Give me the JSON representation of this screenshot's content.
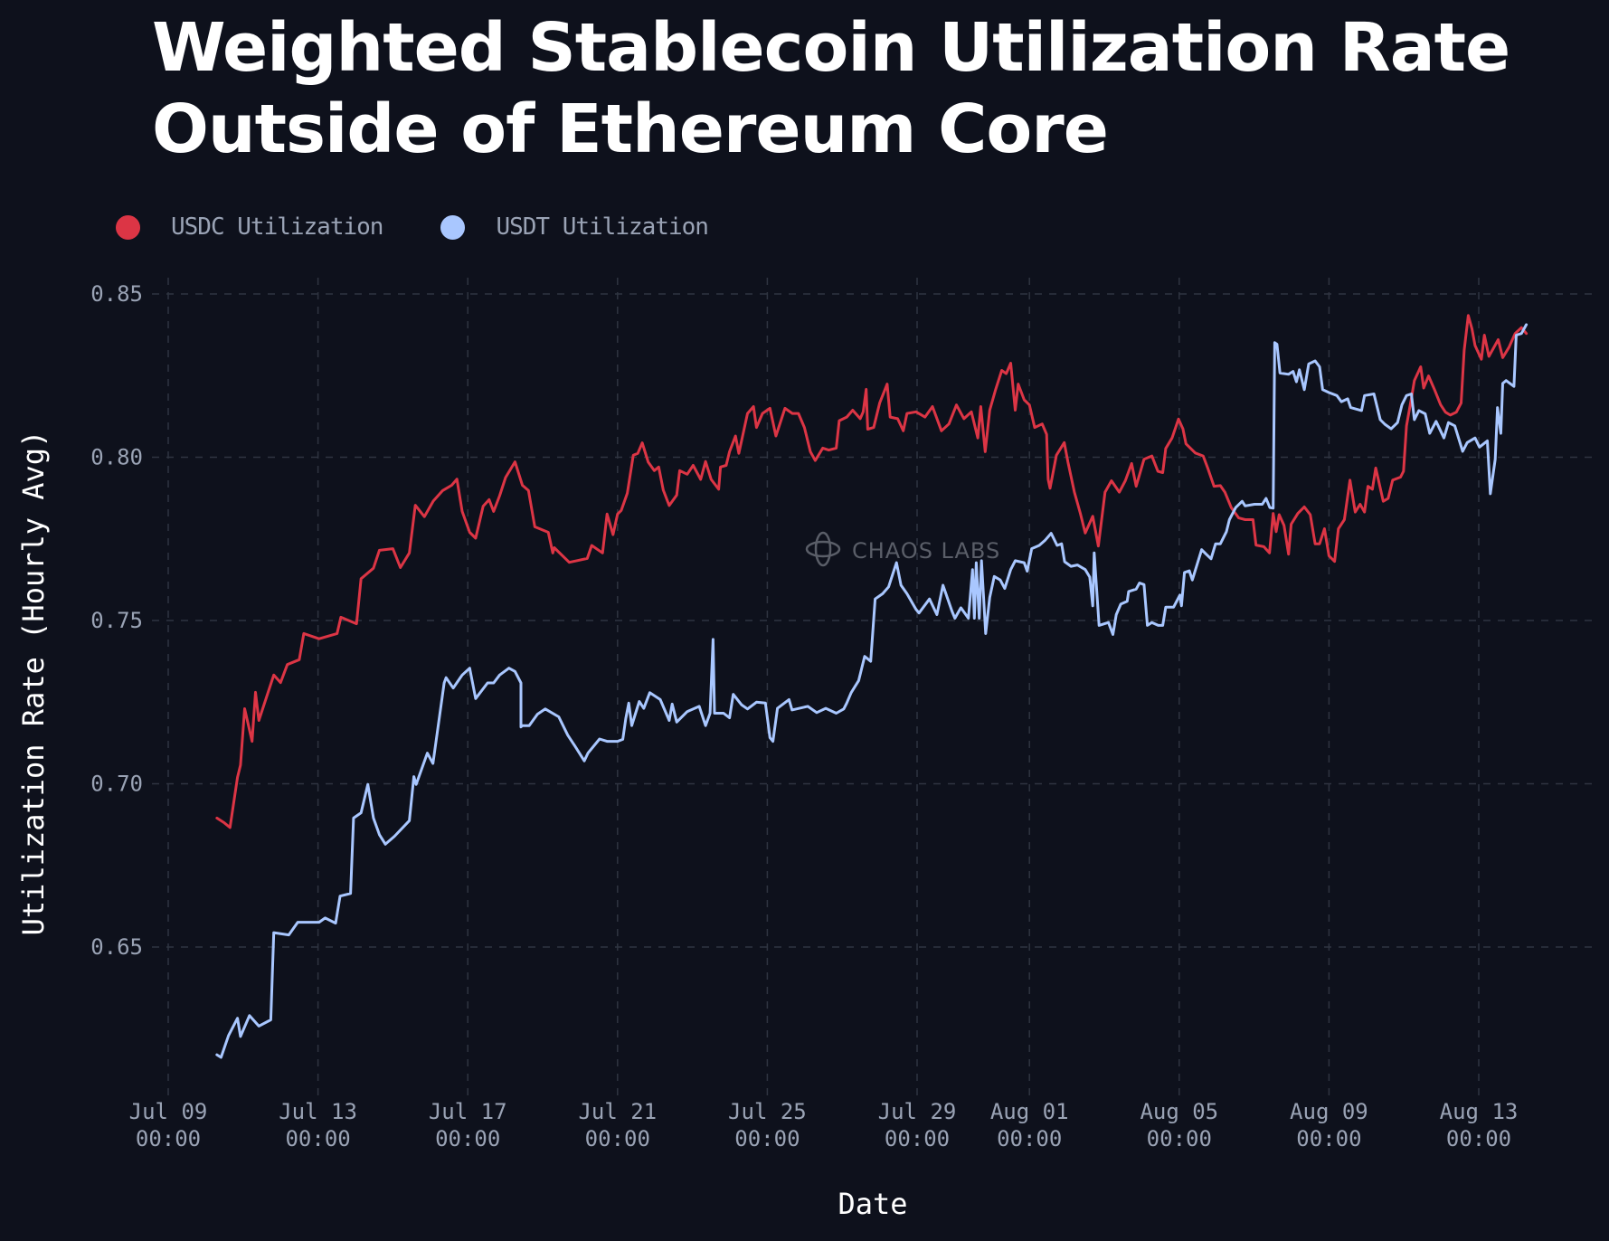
{
  "chart_data": {
    "type": "line",
    "title": "Weighted Stablecoin Utilization Rate Outside of Ethereum Core",
    "title_lines": [
      "Weighted Stablecoin Utilization Rate",
      "Outside of Ethereum Core"
    ],
    "xlabel": "Date",
    "ylabel": "Utilization Rate (Hourly Avg)",
    "x_unit": "days since Jul 09 00:00",
    "xlim": [
      -0.5,
      38.5
    ],
    "ylim": [
      0.6055,
      0.855
    ],
    "grid": true,
    "legend_position": "top-left",
    "watermark": "CHAOS LABS",
    "y_ticks": [
      {
        "value": 0.85,
        "label": "0.85"
      },
      {
        "value": 0.8,
        "label": "0.80"
      },
      {
        "value": 0.75,
        "label": "0.75"
      },
      {
        "value": 0.7,
        "label": "0.70"
      },
      {
        "value": 0.65,
        "label": "0.65"
      }
    ],
    "x_ticks": [
      {
        "day": 0,
        "label": "Jul 09",
        "sub": "00:00"
      },
      {
        "day": 4,
        "label": "Jul 13",
        "sub": "00:00"
      },
      {
        "day": 8,
        "label": "Jul 17",
        "sub": "00:00"
      },
      {
        "day": 12,
        "label": "Jul 21",
        "sub": "00:00"
      },
      {
        "day": 16,
        "label": "Jul 25",
        "sub": "00:00"
      },
      {
        "day": 20,
        "label": "Jul 29",
        "sub": "00:00"
      },
      {
        "day": 23,
        "label": "Aug 01",
        "sub": "00:00"
      },
      {
        "day": 27,
        "label": "Aug 05",
        "sub": "00:00"
      },
      {
        "day": 31,
        "label": "Aug 09",
        "sub": "00:00"
      },
      {
        "day": 35,
        "label": "Aug 13",
        "sub": "00:00"
      }
    ],
    "series": [
      {
        "name": "USDC Utilization",
        "color": "#dc3545",
        "x": [
          1.3,
          1.5,
          1.65,
          1.85,
          1.93,
          2.04,
          2.24,
          2.33,
          2.42,
          2.82,
          3.0,
          3.18,
          3.5,
          3.62,
          4.03,
          4.51,
          4.61,
          5.03,
          5.15,
          5.48,
          5.64,
          6.0,
          6.2,
          6.44,
          6.6,
          6.84,
          7.08,
          7.33,
          7.57,
          7.71,
          7.85,
          8.05,
          8.21,
          8.41,
          8.57,
          8.69,
          8.85,
          9.01,
          9.26,
          9.46,
          9.62,
          9.79,
          10.15,
          10.27,
          10.31,
          10.71,
          11.19,
          11.31,
          11.6,
          11.72,
          11.88,
          12.0,
          12.1,
          12.26,
          12.42,
          12.54,
          12.66,
          12.82,
          12.98,
          13.1,
          13.22,
          13.38,
          13.58,
          13.66,
          13.86,
          14.02,
          14.22,
          14.35,
          14.5,
          14.7,
          14.75,
          14.9,
          14.99,
          15.15,
          15.24,
          15.47,
          15.63,
          15.71,
          15.87,
          16.07,
          16.23,
          16.47,
          16.67,
          16.83,
          16.99,
          17.15,
          17.28,
          17.48,
          17.64,
          17.84,
          17.92,
          18.12,
          18.28,
          18.48,
          18.56,
          18.64,
          18.68,
          18.84,
          19.0,
          19.2,
          19.28,
          19.48,
          19.63,
          19.73,
          19.97,
          20.21,
          20.41,
          20.65,
          20.85,
          21.05,
          21.25,
          21.45,
          21.62,
          21.7,
          21.82,
          21.94,
          22.1,
          22.26,
          22.38,
          22.5,
          22.62,
          22.7,
          22.86,
          23.0,
          23.14,
          23.34,
          23.46,
          23.5,
          23.55,
          23.72,
          23.93,
          24.03,
          24.2,
          24.36,
          24.49,
          24.69,
          24.84,
          25.02,
          25.19,
          25.4,
          25.56,
          25.73,
          25.85,
          26.06,
          26.27,
          26.43,
          26.56,
          26.64,
          26.81,
          26.98,
          27.1,
          27.18,
          27.43,
          27.64,
          27.76,
          27.93,
          28.1,
          28.22,
          28.39,
          28.59,
          28.76,
          28.97,
          29.05,
          29.26,
          29.41,
          29.51,
          29.59,
          29.67,
          29.8,
          29.92,
          29.99,
          30.17,
          30.34,
          30.5,
          30.63,
          30.75,
          30.88,
          31.0,
          31.15,
          31.25,
          31.41,
          31.56,
          31.7,
          31.83,
          31.95,
          32.04,
          32.16,
          32.25,
          32.45,
          32.58,
          32.7,
          32.91,
          32.99,
          33.07,
          33.2,
          33.28,
          33.45,
          33.53,
          33.66,
          33.82,
          33.98,
          34.11,
          34.24,
          34.4,
          34.53,
          34.61,
          34.72,
          34.82,
          34.9,
          35.07,
          35.15,
          35.27,
          35.52,
          35.64,
          35.81,
          35.97,
          36.14,
          36.27
        ],
        "values": [
          0.6895,
          0.688,
          0.6866,
          0.702,
          0.7057,
          0.723,
          0.713,
          0.728,
          0.7194,
          0.7333,
          0.731,
          0.7365,
          0.738,
          0.746,
          0.7444,
          0.746,
          0.751,
          0.749,
          0.7628,
          0.766,
          0.7715,
          0.772,
          0.7662,
          0.7707,
          0.7853,
          0.7818,
          0.7866,
          0.7898,
          0.7914,
          0.7933,
          0.7834,
          0.777,
          0.7752,
          0.785,
          0.787,
          0.7834,
          0.7882,
          0.7938,
          0.7986,
          0.7914,
          0.7898,
          0.7787,
          0.777,
          0.7707,
          0.7723,
          0.7678,
          0.769,
          0.773,
          0.7707,
          0.7826,
          0.7763,
          0.7826,
          0.7837,
          0.789,
          0.8006,
          0.8012,
          0.8044,
          0.7985,
          0.7959,
          0.797,
          0.79,
          0.7852,
          0.7884,
          0.7959,
          0.7948,
          0.7975,
          0.7932,
          0.7987,
          0.7932,
          0.7902,
          0.797,
          0.7975,
          0.8017,
          0.8065,
          0.8012,
          0.8134,
          0.8155,
          0.8091,
          0.8134,
          0.815,
          0.8065,
          0.815,
          0.8134,
          0.8134,
          0.8091,
          0.8017,
          0.799,
          0.8028,
          0.8022,
          0.8028,
          0.8112,
          0.8123,
          0.8144,
          0.8118,
          0.8139,
          0.8208,
          0.8086,
          0.8091,
          0.8166,
          0.8224,
          0.8123,
          0.8118,
          0.8081,
          0.8134,
          0.8139,
          0.8123,
          0.8155,
          0.8081,
          0.8102,
          0.816,
          0.8118,
          0.8139,
          0.8059,
          0.8155,
          0.8017,
          0.8144,
          0.8208,
          0.8266,
          0.8256,
          0.8288,
          0.8144,
          0.8224,
          0.8176,
          0.816,
          0.8091,
          0.8102,
          0.807,
          0.7932,
          0.7905,
          0.8006,
          0.8045,
          0.7985,
          0.7893,
          0.7828,
          0.7768,
          0.7819,
          0.7728,
          0.7893,
          0.7928,
          0.7893,
          0.7928,
          0.7981,
          0.7911,
          0.7994,
          0.8004,
          0.7957,
          0.7953,
          0.8027,
          0.8059,
          0.8117,
          0.8087,
          0.8041,
          0.8013,
          0.8004,
          0.7967,
          0.7911,
          0.7913,
          0.7893,
          0.7846,
          0.7814,
          0.7809,
          0.7809,
          0.7731,
          0.7726,
          0.7707,
          0.7828,
          0.7772,
          0.7824,
          0.7791,
          0.7703,
          0.7795,
          0.7828,
          0.7848,
          0.7824,
          0.7735,
          0.7735,
          0.7781,
          0.7698,
          0.7681,
          0.7781,
          0.7809,
          0.793,
          0.7832,
          0.7856,
          0.7832,
          0.7911,
          0.7902,
          0.7967,
          0.7865,
          0.7874,
          0.793,
          0.7939,
          0.7957,
          0.8096,
          0.818,
          0.8235,
          0.8277,
          0.8212,
          0.8249,
          0.8207,
          0.8161,
          0.8138,
          0.8129,
          0.8138,
          0.8166,
          0.8328,
          0.8434,
          0.8393,
          0.8342,
          0.83,
          0.8374,
          0.8309,
          0.836,
          0.8305,
          0.8337,
          0.8379,
          0.8397,
          0.8379
        ]
      },
      {
        "name": "USDT Utilization",
        "color": "#a9c7ff",
        "x": [
          1.3,
          1.41,
          1.61,
          1.85,
          1.93,
          2.17,
          2.42,
          2.74,
          2.82,
          3.22,
          3.46,
          4.03,
          4.19,
          4.47,
          4.59,
          4.87,
          4.95,
          5.15,
          5.33,
          5.48,
          5.64,
          5.8,
          6.04,
          6.44,
          6.56,
          6.62,
          6.92,
          7.07,
          7.37,
          7.42,
          7.61,
          7.85,
          8.05,
          8.21,
          8.53,
          8.69,
          8.85,
          9.1,
          9.26,
          9.42,
          9.42,
          9.46,
          9.64,
          9.86,
          10.07,
          10.43,
          10.67,
          10.87,
          11.11,
          11.21,
          11.52,
          11.72,
          12.0,
          12.14,
          12.22,
          12.3,
          12.38,
          12.58,
          12.7,
          12.86,
          13.14,
          13.38,
          13.46,
          13.58,
          13.86,
          14.18,
          14.35,
          14.47,
          14.55,
          14.59,
          14.83,
          14.99,
          15.09,
          15.31,
          15.47,
          15.71,
          15.95,
          16.07,
          16.15,
          16.27,
          16.58,
          16.66,
          17.08,
          17.32,
          17.56,
          17.84,
          18.04,
          18.12,
          18.24,
          18.44,
          18.6,
          18.76,
          18.88,
          19.08,
          19.24,
          19.36,
          19.45,
          19.57,
          19.73,
          19.97,
          20.05,
          20.33,
          20.53,
          20.69,
          20.93,
          21.01,
          21.17,
          21.37,
          21.48,
          21.53,
          21.58,
          21.66,
          21.72,
          21.83,
          21.94,
          22.06,
          22.22,
          22.34,
          22.5,
          22.62,
          22.86,
          22.94,
          23.06,
          23.26,
          23.42,
          23.58,
          23.74,
          23.86,
          23.94,
          24.11,
          24.28,
          24.49,
          24.61,
          24.69,
          24.73,
          24.86,
          25.11,
          25.23,
          25.32,
          25.44,
          25.61,
          25.65,
          25.85,
          25.94,
          26.06,
          26.15,
          26.27,
          26.44,
          26.56,
          26.64,
          26.85,
          27.02,
          27.06,
          27.14,
          27.27,
          27.35,
          27.6,
          27.72,
          27.85,
          27.97,
          28.1,
          28.26,
          28.34,
          28.51,
          28.68,
          28.76,
          29.01,
          29.22,
          29.32,
          29.42,
          29.51,
          29.55,
          29.61,
          29.69,
          29.92,
          30.04,
          30.13,
          30.21,
          30.34,
          30.46,
          30.63,
          30.75,
          30.83,
          31.0,
          31.21,
          31.33,
          31.5,
          31.58,
          31.87,
          31.95,
          32.2,
          32.37,
          32.49,
          32.66,
          32.83,
          32.95,
          33.07,
          33.2,
          33.28,
          33.4,
          33.57,
          33.69,
          33.86,
          34.07,
          34.19,
          34.36,
          34.57,
          34.69,
          34.9,
          35.02,
          35.23,
          35.31,
          35.44,
          35.5,
          35.59,
          35.64,
          35.73,
          35.94,
          36.0,
          36.14,
          36.27
        ],
        "values": [
          0.617,
          0.6162,
          0.6229,
          0.6282,
          0.6226,
          0.629,
          0.6258,
          0.6277,
          0.6544,
          0.6537,
          0.6576,
          0.6576,
          0.6589,
          0.6573,
          0.6656,
          0.6664,
          0.6895,
          0.6911,
          0.6998,
          0.6895,
          0.6844,
          0.6815,
          0.6839,
          0.6887,
          0.7022,
          0.6998,
          0.7094,
          0.7062,
          0.7309,
          0.7325,
          0.7293,
          0.7333,
          0.7354,
          0.7261,
          0.7309,
          0.7309,
          0.7333,
          0.7354,
          0.7344,
          0.7309,
          0.7174,
          0.7178,
          0.7178,
          0.7213,
          0.7229,
          0.7205,
          0.7149,
          0.7114,
          0.707,
          0.7094,
          0.7137,
          0.713,
          0.713,
          0.7136,
          0.72,
          0.7247,
          0.7178,
          0.7252,
          0.7231,
          0.7279,
          0.7258,
          0.7194,
          0.7244,
          0.7189,
          0.7221,
          0.7237,
          0.7178,
          0.7216,
          0.7442,
          0.7216,
          0.7216,
          0.7202,
          0.7274,
          0.7242,
          0.7229,
          0.725,
          0.7247,
          0.7141,
          0.713,
          0.7231,
          0.7258,
          0.7226,
          0.7237,
          0.7218,
          0.7231,
          0.7216,
          0.7229,
          0.7247,
          0.7279,
          0.7316,
          0.739,
          0.7375,
          0.7566,
          0.7582,
          0.7603,
          0.7646,
          0.7677,
          0.7608,
          0.7582,
          0.7534,
          0.7523,
          0.7566,
          0.7518,
          0.7608,
          0.7529,
          0.7507,
          0.7539,
          0.7507,
          0.7656,
          0.7507,
          0.7677,
          0.7507,
          0.7683,
          0.746,
          0.7571,
          0.7635,
          0.7624,
          0.7598,
          0.7656,
          0.7683,
          0.7677,
          0.7651,
          0.772,
          0.773,
          0.7746,
          0.7767,
          0.773,
          0.7735,
          0.768,
          0.7666,
          0.767,
          0.7656,
          0.7633,
          0.7545,
          0.7707,
          0.7485,
          0.7494,
          0.7457,
          0.7518,
          0.755,
          0.7559,
          0.7589,
          0.7596,
          0.7615,
          0.761,
          0.7485,
          0.7494,
          0.7485,
          0.7485,
          0.7541,
          0.7541,
          0.7578,
          0.7545,
          0.7647,
          0.7652,
          0.7624,
          0.7717,
          0.7703,
          0.7689,
          0.7735,
          0.7735,
          0.7772,
          0.7809,
          0.7846,
          0.7865,
          0.7851,
          0.7856,
          0.7856,
          0.7874,
          0.7846,
          0.7844,
          0.8351,
          0.8346,
          0.8258,
          0.8254,
          0.8263,
          0.8231,
          0.8268,
          0.8207,
          0.8286,
          0.8295,
          0.8277,
          0.8207,
          0.8198,
          0.8189,
          0.817,
          0.8179,
          0.8152,
          0.8143,
          0.8189,
          0.8194,
          0.8115,
          0.8101,
          0.8087,
          0.8106,
          0.8161,
          0.8189,
          0.8194,
          0.8115,
          0.8143,
          0.8133,
          0.8073,
          0.811,
          0.8059,
          0.8106,
          0.8096,
          0.8018,
          0.8045,
          0.8059,
          0.8031,
          0.805,
          0.7888,
          0.7994,
          0.8152,
          0.8073,
          0.8226,
          0.8235,
          0.8217,
          0.8374,
          0.8379,
          0.8406
        ]
      }
    ]
  }
}
